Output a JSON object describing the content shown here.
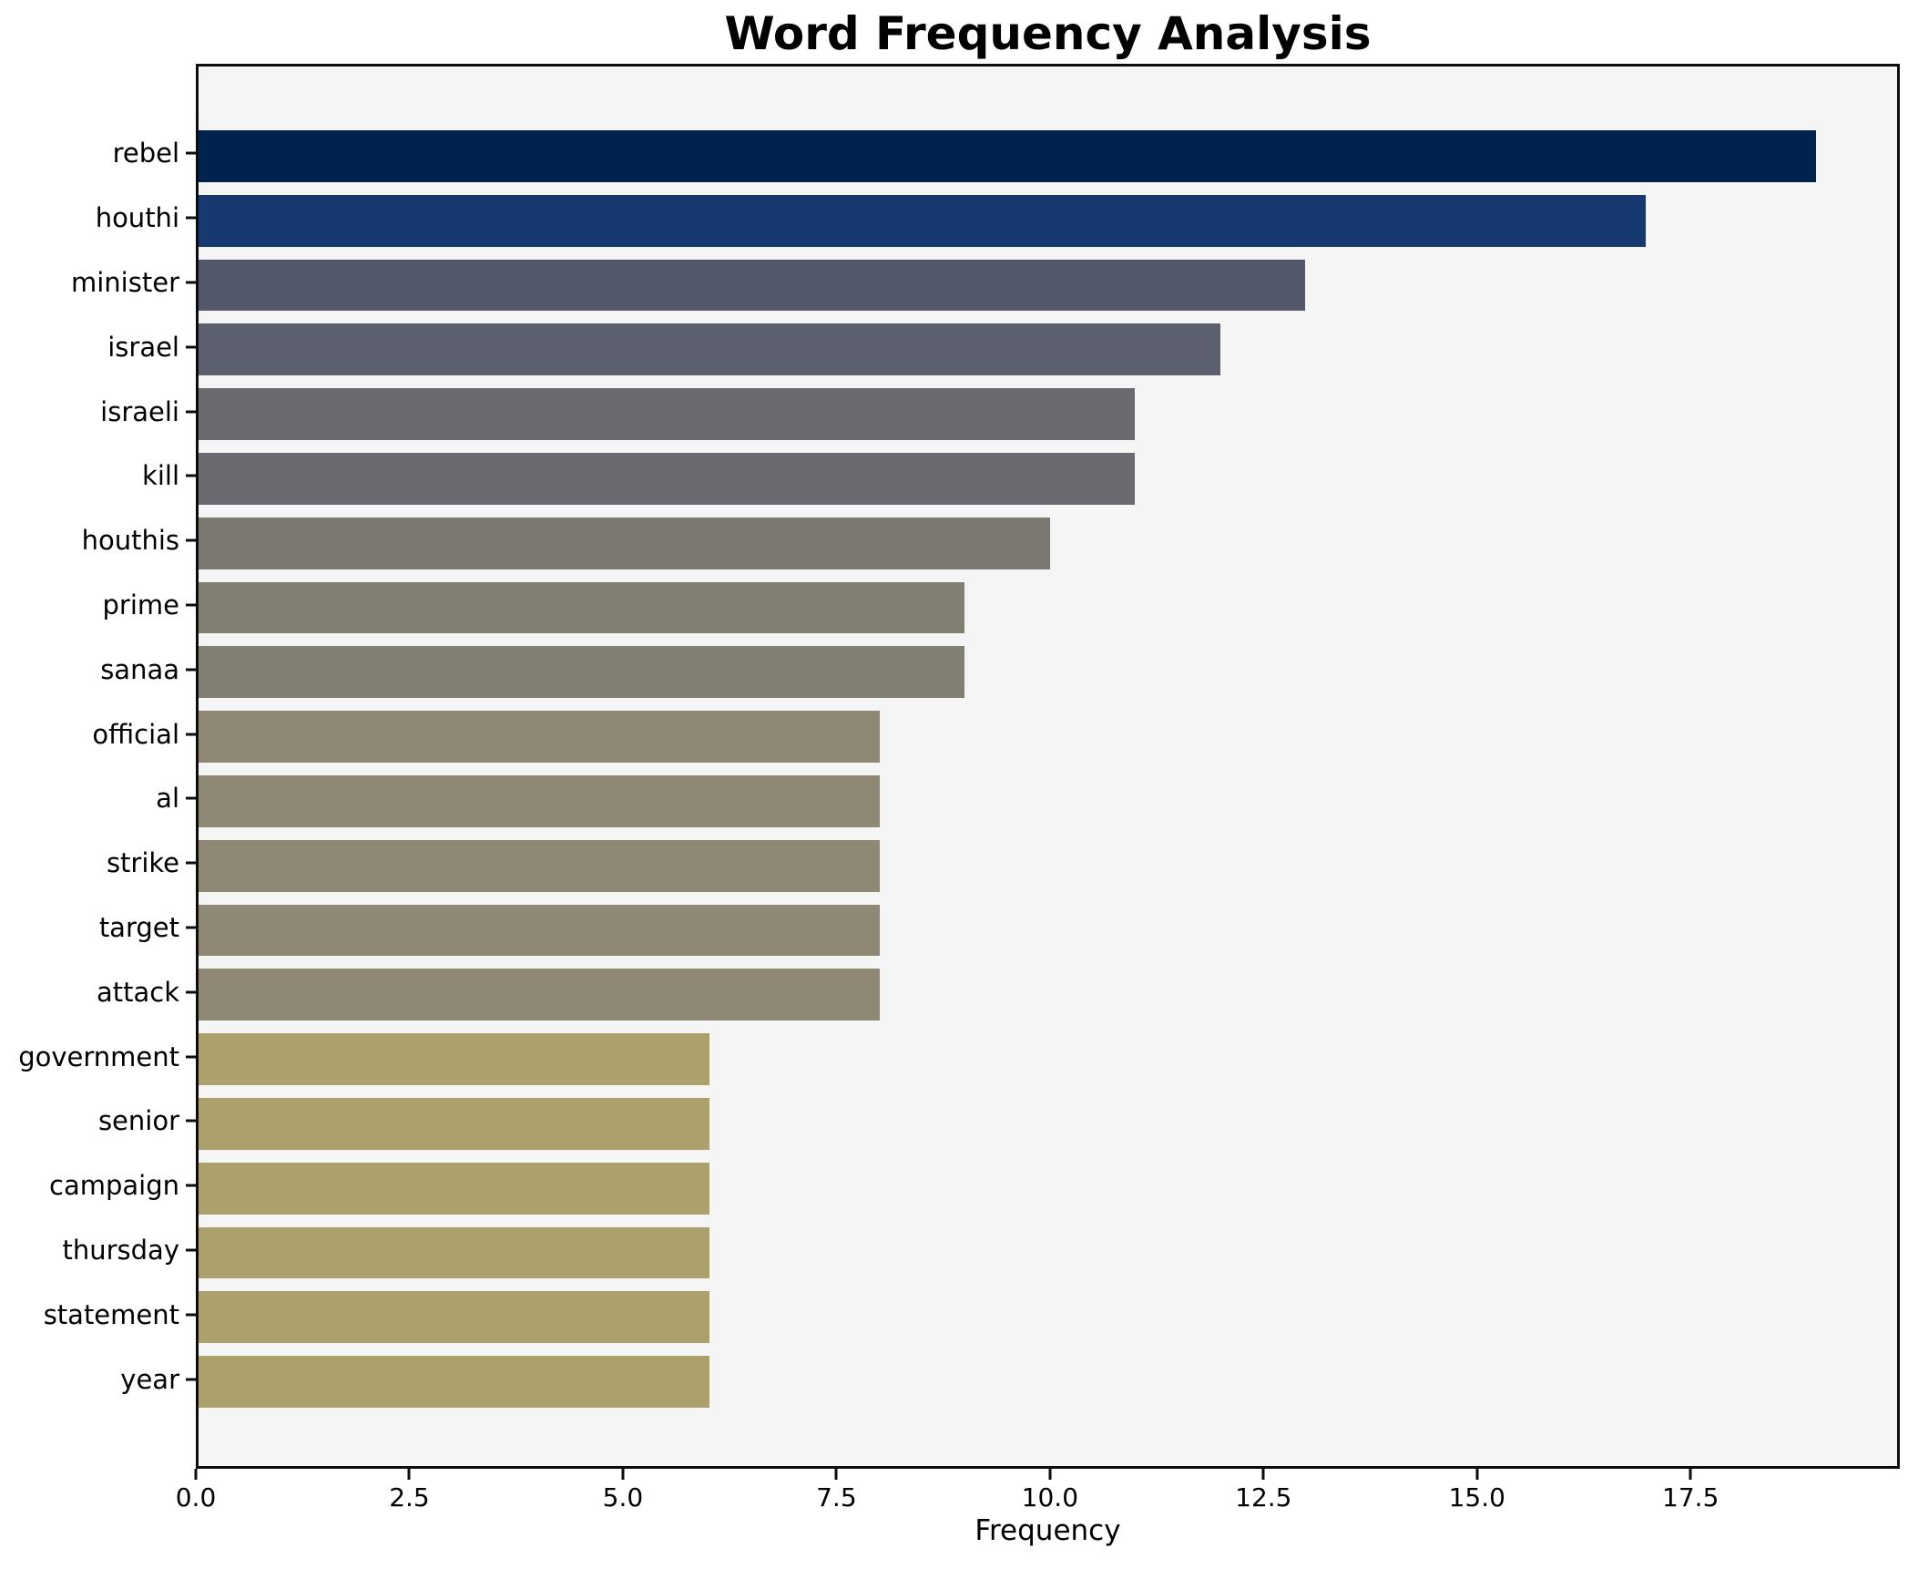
{
  "figure": {
    "background": "#ffffff",
    "plot_background": "#f5f5f6",
    "spine_color": "#0d0d0d",
    "text_color": "#000000"
  },
  "chart_data": {
    "type": "bar",
    "orientation": "horizontal",
    "title": "Word Frequency Analysis",
    "xlabel": "Frequency",
    "ylabel": "",
    "categories": [
      "rebel",
      "houthi",
      "minister",
      "israel",
      "israeli",
      "kill",
      "houthis",
      "prime",
      "sanaa",
      "official",
      "al",
      "strike",
      "target",
      "attack",
      "government",
      "senior",
      "campaign",
      "thursday",
      "statement",
      "year"
    ],
    "values": [
      19,
      17,
      13,
      12,
      11,
      11,
      10,
      9,
      9,
      8,
      8,
      8,
      8,
      8,
      6,
      6,
      6,
      6,
      6,
      6
    ],
    "bar_colors": [
      "#00224e",
      "#16396f",
      "#525869",
      "#5b5f6e",
      "#696b70",
      "#696b70",
      "#7a7870",
      "#817e72",
      "#817e72",
      "#8e8875",
      "#8e8875",
      "#8e8875",
      "#8e8875",
      "#8e8875",
      "#aca06c",
      "#aca06c",
      "#aca06c",
      "#aca06c",
      "#aca06c",
      "#aca06c"
    ],
    "xlim": [
      0,
      19.95
    ],
    "xticks": [
      0,
      2.5,
      5,
      7.5,
      10,
      12.5,
      15,
      17.5
    ],
    "xtick_labels": [
      "0.0",
      "2.5",
      "5.0",
      "7.5",
      "10.0",
      "12.5",
      "15.0",
      "17.5"
    ],
    "grid": false,
    "legend": null,
    "bar_relative_height": 0.8
  }
}
